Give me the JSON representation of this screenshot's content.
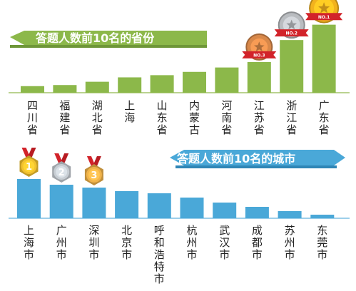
{
  "chart_data": [
    {
      "type": "bar",
      "title": "答题人数前10名的省份",
      "categories": [
        "四川省",
        "福建省",
        "湖北省",
        "上海",
        "山东省",
        "内蒙古",
        "河南省",
        "江苏省",
        "浙江省",
        "广东省"
      ],
      "values": [
        6,
        7,
        10,
        14,
        16,
        19,
        23,
        28,
        48,
        62
      ],
      "ylim": [
        0,
        65
      ],
      "bar_color": "#8cb84a",
      "title_color": "#8cb84a",
      "medals": [
        {
          "category": "广东省",
          "text": "NO.1",
          "color": "#f2b21e"
        },
        {
          "category": "浙江省",
          "text": "NO.2",
          "color": "#b9bcc0"
        },
        {
          "category": "江苏省",
          "text": "NO.3",
          "color": "#d8884a"
        }
      ]
    },
    {
      "type": "bar",
      "title": "答题人数前10名的城市",
      "categories": [
        "上海市",
        "广州市",
        "深圳市",
        "北京市",
        "呼和浩特市",
        "杭州市",
        "武汉市",
        "成都市",
        "苏州市",
        "东莞市"
      ],
      "values": [
        55,
        47,
        43,
        38,
        35,
        29,
        22,
        16,
        10,
        5
      ],
      "ylim": [
        0,
        60
      ],
      "bar_color": "#4aa8d8",
      "title_color": "#4aa8d8",
      "medals": [
        {
          "category": "上海市",
          "text": "1",
          "color": "#f2c22e"
        },
        {
          "category": "广州市",
          "text": "2",
          "color": "#c7cdd3"
        },
        {
          "category": "深圳市",
          "text": "3",
          "color": "#f0b34a"
        }
      ]
    }
  ]
}
